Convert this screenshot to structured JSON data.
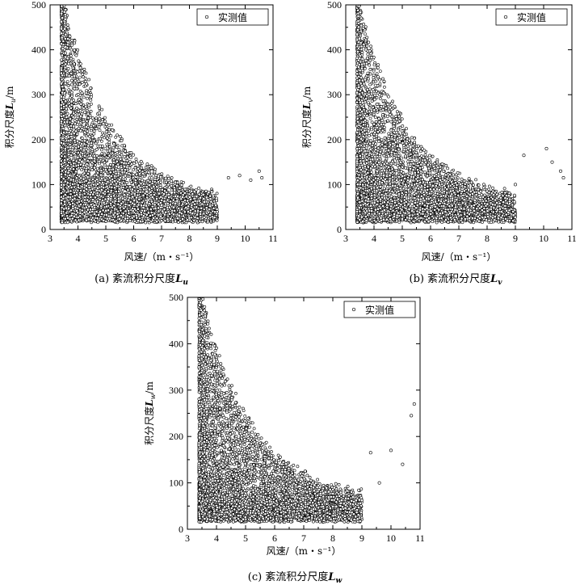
{
  "figure": {
    "panels": [
      {
        "id": "a",
        "caption_prefix": "(a)",
        "caption_text": "紊流积分尺度",
        "caption_symbol": "L",
        "caption_sub": "u",
        "ylabel_prefix": "积分尺度",
        "ylabel_symbol": "L",
        "ylabel_sub": "u",
        "ylabel_suffix": "/m",
        "xlabel": "风速/（m・s⁻¹）",
        "legend": "实测值"
      },
      {
        "id": "b",
        "caption_prefix": "(b)",
        "caption_text": "紊流积分尺度",
        "caption_symbol": "L",
        "caption_sub": "v",
        "ylabel_prefix": "积分尺度",
        "ylabel_symbol": "L",
        "ylabel_sub": "v",
        "ylabel_suffix": "/m",
        "xlabel": "风速/（m・s⁻¹）",
        "legend": "实测值"
      },
      {
        "id": "c",
        "caption_prefix": "(c)",
        "caption_text": "紊流积分尺度",
        "caption_symbol": "L",
        "caption_sub": "w",
        "ylabel_prefix": "积分尺度",
        "ylabel_symbol": "L",
        "ylabel_sub": "w",
        "ylabel_suffix": "/m",
        "xlabel": "风速/（m・s⁻¹）",
        "legend": "实测值"
      }
    ]
  },
  "chart_data": [
    {
      "type": "scatter",
      "series": [
        {
          "name": "实测值"
        }
      ],
      "xlim": [
        3,
        11
      ],
      "ylim": [
        0,
        500
      ],
      "xticks": [
        3,
        4,
        5,
        6,
        7,
        8,
        9,
        10,
        11
      ],
      "yticks": [
        0,
        100,
        200,
        300,
        400,
        500
      ],
      "x_data_range": [
        3.4,
        10.8
      ],
      "y_data_range": [
        15,
        500
      ],
      "note_values": "dense point cloud; density highest at x 3.4–5 and y 20–150; upper envelope decays from ~500 m at 3.5 m/s to ~120 m at 10.5 m/s",
      "outliers": [
        [
          9.8,
          120
        ],
        [
          10.2,
          110
        ],
        [
          10.5,
          130
        ],
        [
          10.6,
          115
        ],
        [
          9.4,
          115
        ]
      ],
      "grid": false,
      "legend_position": "top-right"
    },
    {
      "type": "scatter",
      "series": [
        {
          "name": "实测值"
        }
      ],
      "xlim": [
        3,
        11
      ],
      "ylim": [
        0,
        500
      ],
      "xticks": [
        3,
        4,
        5,
        6,
        7,
        8,
        9,
        10,
        11
      ],
      "yticks": [
        0,
        100,
        200,
        300,
        400,
        500
      ],
      "x_data_range": [
        3.4,
        10.8
      ],
      "y_data_range": [
        15,
        500
      ],
      "note_values": "dense point cloud concentrated at x 3.4–5.5 and y 20–150; upper envelope decays with wind speed",
      "outliers": [
        [
          9.3,
          165
        ],
        [
          10.1,
          180
        ],
        [
          10.3,
          150
        ],
        [
          10.6,
          130
        ],
        [
          10.7,
          115
        ],
        [
          9.0,
          100
        ]
      ],
      "grid": false,
      "legend_position": "top-right"
    },
    {
      "type": "scatter",
      "series": [
        {
          "name": "实测值"
        }
      ],
      "xlim": [
        3,
        11
      ],
      "ylim": [
        0,
        500
      ],
      "xticks": [
        3,
        4,
        5,
        6,
        7,
        8,
        9,
        10,
        11
      ],
      "yticks": [
        0,
        100,
        200,
        300,
        400,
        500
      ],
      "x_data_range": [
        3.4,
        10.8
      ],
      "y_data_range": [
        15,
        500
      ],
      "note_values": "dense point cloud concentrated at x 3.4–5.5 and y 20–120; upper envelope decays with wind speed",
      "outliers": [
        [
          9.6,
          100
        ],
        [
          10.0,
          170
        ],
        [
          10.4,
          140
        ],
        [
          10.7,
          245
        ],
        [
          10.8,
          270
        ],
        [
          9.3,
          165
        ]
      ],
      "grid": false,
      "legend_position": "top-right"
    }
  ]
}
